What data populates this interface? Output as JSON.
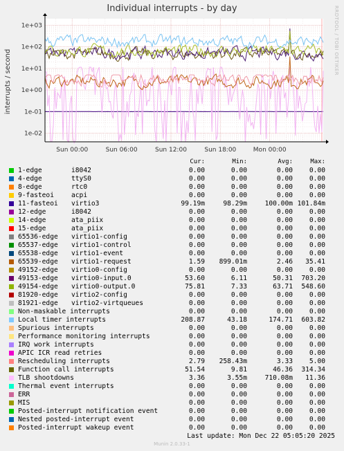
{
  "title": "Individual interrupts - by day",
  "side_label": "RRDTOOL / TOBI OETIKER",
  "chart_data": {
    "type": "line",
    "title": "Individual interrupts - by day",
    "ylabel": "interrupts / second",
    "yscale": "log",
    "ylim": [
      0.004,
      2000
    ],
    "y_ticks": [
      "1e+03",
      "1e+02",
      "1e+01",
      "1e+00",
      "1e-01",
      "1e-02"
    ],
    "x_ticks": [
      "Sun 00:00",
      "Sun 06:00",
      "Sun 12:00",
      "Sun 18:00",
      "Mon 00:00"
    ],
    "grid": true,
    "series": [
      {
        "name": "Local timer interrupts",
        "color": "#7ac3f2",
        "avg": 174.71,
        "min": 43.18,
        "max": 603.82
      },
      {
        "name": "virtio0-output.0",
        "color": "#a8bf2a",
        "avg": 63.71,
        "min": 7.33,
        "max": 548.6
      },
      {
        "name": "virtio0-input.0",
        "color": "#4d1f73",
        "avg": 50.31,
        "min": 6.11,
        "max": 703.2
      },
      {
        "name": "Function call interrupts",
        "color": "#6a5712",
        "avg": 46.36,
        "min": 9.81,
        "max": 314.34
      },
      {
        "name": "Rescheduling interrupts",
        "color": "#ef9aa8",
        "avg": 3.33,
        "min": 0.25843,
        "max": 5.0
      },
      {
        "name": "virtio1-request",
        "color": "#bf6519",
        "avg": 2.46,
        "min": 0.89901,
        "max": 35.41
      },
      {
        "name": "TLB shootdowns",
        "color": "#f2b3f2",
        "avg": 0.71008,
        "min": 0.00355,
        "max": 11.36
      },
      {
        "name": "virtio3",
        "color": "#3b0080",
        "avg": 0.1,
        "min": 0.09829,
        "max": 0.10184
      }
    ]
  },
  "legend": {
    "headers": {
      "cur": "Cur:",
      "min": "Min:",
      "avg": "Avg:",
      "max": "Max:"
    },
    "rows": [
      {
        "name": "1-edge",
        "dev": "i8042",
        "color": "#00cc00",
        "cur": "0.00",
        "min": "0.00",
        "avg": "0.00",
        "max": "0.00"
      },
      {
        "name": "4-edge",
        "dev": "ttyS0",
        "color": "#0066b3",
        "cur": "0.00",
        "min": "0.00",
        "avg": "0.00",
        "max": "0.00"
      },
      {
        "name": "8-edge",
        "dev": "rtc0",
        "color": "#ff8000",
        "cur": "0.00",
        "min": "0.00",
        "avg": "0.00",
        "max": "0.00"
      },
      {
        "name": "9-fasteoi",
        "dev": "acpi",
        "color": "#ffcc00",
        "cur": "0.00",
        "min": "0.00",
        "avg": "0.00",
        "max": "0.00"
      },
      {
        "name": "11-fasteoi",
        "dev": "virtio3",
        "color": "#330099",
        "cur": "99.19m",
        "min": "98.29m",
        "avg": "100.00m",
        "max": "101.84m"
      },
      {
        "name": "12-edge",
        "dev": "i8042",
        "color": "#990099",
        "cur": "0.00",
        "min": "0.00",
        "avg": "0.00",
        "max": "0.00"
      },
      {
        "name": "14-edge",
        "dev": "ata_piix",
        "color": "#ccff00",
        "cur": "0.00",
        "min": "0.00",
        "avg": "0.00",
        "max": "0.00"
      },
      {
        "name": "15-edge",
        "dev": "ata_piix",
        "color": "#ff0000",
        "cur": "0.00",
        "min": "0.00",
        "avg": "0.00",
        "max": "0.00"
      },
      {
        "name": "65536-edge",
        "dev": "virtio1-config",
        "color": "#808080",
        "cur": "0.00",
        "min": "0.00",
        "avg": "0.00",
        "max": "0.00"
      },
      {
        "name": "65537-edge",
        "dev": "virtio1-control",
        "color": "#008f00",
        "cur": "0.00",
        "min": "0.00",
        "avg": "0.00",
        "max": "0.00"
      },
      {
        "name": "65538-edge",
        "dev": "virtio1-event",
        "color": "#00487d",
        "cur": "0.00",
        "min": "0.00",
        "avg": "0.00",
        "max": "0.00"
      },
      {
        "name": "65539-edge",
        "dev": "virtio1-request",
        "color": "#b35a00",
        "cur": "1.59",
        "min": "899.01m",
        "avg": "2.46",
        "max": "35.41"
      },
      {
        "name": "49152-edge",
        "dev": "virtio0-config",
        "color": "#b38f00",
        "cur": "0.00",
        "min": "0.00",
        "avg": "0.00",
        "max": "0.00"
      },
      {
        "name": "49153-edge",
        "dev": "virtio0-input.0",
        "color": "#6b006b",
        "cur": "53.60",
        "min": "6.11",
        "avg": "50.31",
        "max": "703.20"
      },
      {
        "name": "49154-edge",
        "dev": "virtio0-output.0",
        "color": "#8fb300",
        "cur": "75.81",
        "min": "7.33",
        "avg": "63.71",
        "max": "548.60"
      },
      {
        "name": "81920-edge",
        "dev": "virtio2-config",
        "color": "#b30000",
        "cur": "0.00",
        "min": "0.00",
        "avg": "0.00",
        "max": "0.00"
      },
      {
        "name": "81921-edge",
        "dev": "virtio2-virtqueues",
        "color": "#bebebe",
        "cur": "0.00",
        "min": "0.00",
        "avg": "0.00",
        "max": "0.00"
      },
      {
        "name": "Non-maskable interrupts",
        "dev": "",
        "color": "#80ff80",
        "cur": "0.00",
        "min": "0.00",
        "avg": "0.00",
        "max": "0.00"
      },
      {
        "name": "Local timer interrupts",
        "dev": "",
        "color": "#80c9ff",
        "cur": "208.87",
        "min": "43.18",
        "avg": "174.71",
        "max": "603.82"
      },
      {
        "name": "Spurious interrupts",
        "dev": "",
        "color": "#ffc080",
        "cur": "0.00",
        "min": "0.00",
        "avg": "0.00",
        "max": "0.00"
      },
      {
        "name": "Performance monitoring interrupts",
        "dev": "",
        "color": "#ffe680",
        "cur": "0.00",
        "min": "0.00",
        "avg": "0.00",
        "max": "0.00"
      },
      {
        "name": "IRQ work interrupts",
        "dev": "",
        "color": "#aa80ff",
        "cur": "0.00",
        "min": "0.00",
        "avg": "0.00",
        "max": "0.00"
      },
      {
        "name": "APIC ICR read retries",
        "dev": "",
        "color": "#ee00cc",
        "cur": "0.00",
        "min": "0.00",
        "avg": "0.00",
        "max": "0.00"
      },
      {
        "name": "Rescheduling interrupts",
        "dev": "",
        "color": "#ff8080",
        "cur": "2.79",
        "min": "258.43m",
        "avg": "3.33",
        "max": "5.00"
      },
      {
        "name": "Function call interrupts",
        "dev": "",
        "color": "#666600",
        "cur": "51.54",
        "min": "9.81",
        "avg": "46.36",
        "max": "314.34"
      },
      {
        "name": "TLB shootdowns",
        "dev": "",
        "color": "#ffbfff",
        "cur": "3.36",
        "min": "3.55m",
        "avg": "710.08m",
        "max": "11.36"
      },
      {
        "name": "Thermal event interrupts",
        "dev": "",
        "color": "#00ffcc",
        "cur": "0.00",
        "min": "0.00",
        "avg": "0.00",
        "max": "0.00"
      },
      {
        "name": "ERR",
        "dev": "",
        "color": "#cc6699",
        "cur": "0.00",
        "min": "0.00",
        "avg": "0.00",
        "max": "0.00"
      },
      {
        "name": "MIS",
        "dev": "",
        "color": "#999900",
        "cur": "0.00",
        "min": "0.00",
        "avg": "0.00",
        "max": "0.00"
      },
      {
        "name": "Posted-interrupt notification event",
        "dev": "",
        "color": "#00cc00",
        "cur": "0.00",
        "min": "0.00",
        "avg": "0.00",
        "max": "0.00"
      },
      {
        "name": "Nested posted-interrupt event",
        "dev": "",
        "color": "#0066b3",
        "cur": "0.00",
        "min": "0.00",
        "avg": "0.00",
        "max": "0.00"
      },
      {
        "name": "Posted-interrupt wakeup event",
        "dev": "",
        "color": "#ff8000",
        "cur": "0.00",
        "min": "0.00",
        "avg": "0.00",
        "max": "0.00"
      }
    ]
  },
  "last_update": "Last update:  Mon Dec 22 05:05:20 2025",
  "footer": "Munin 2.0.33-1"
}
